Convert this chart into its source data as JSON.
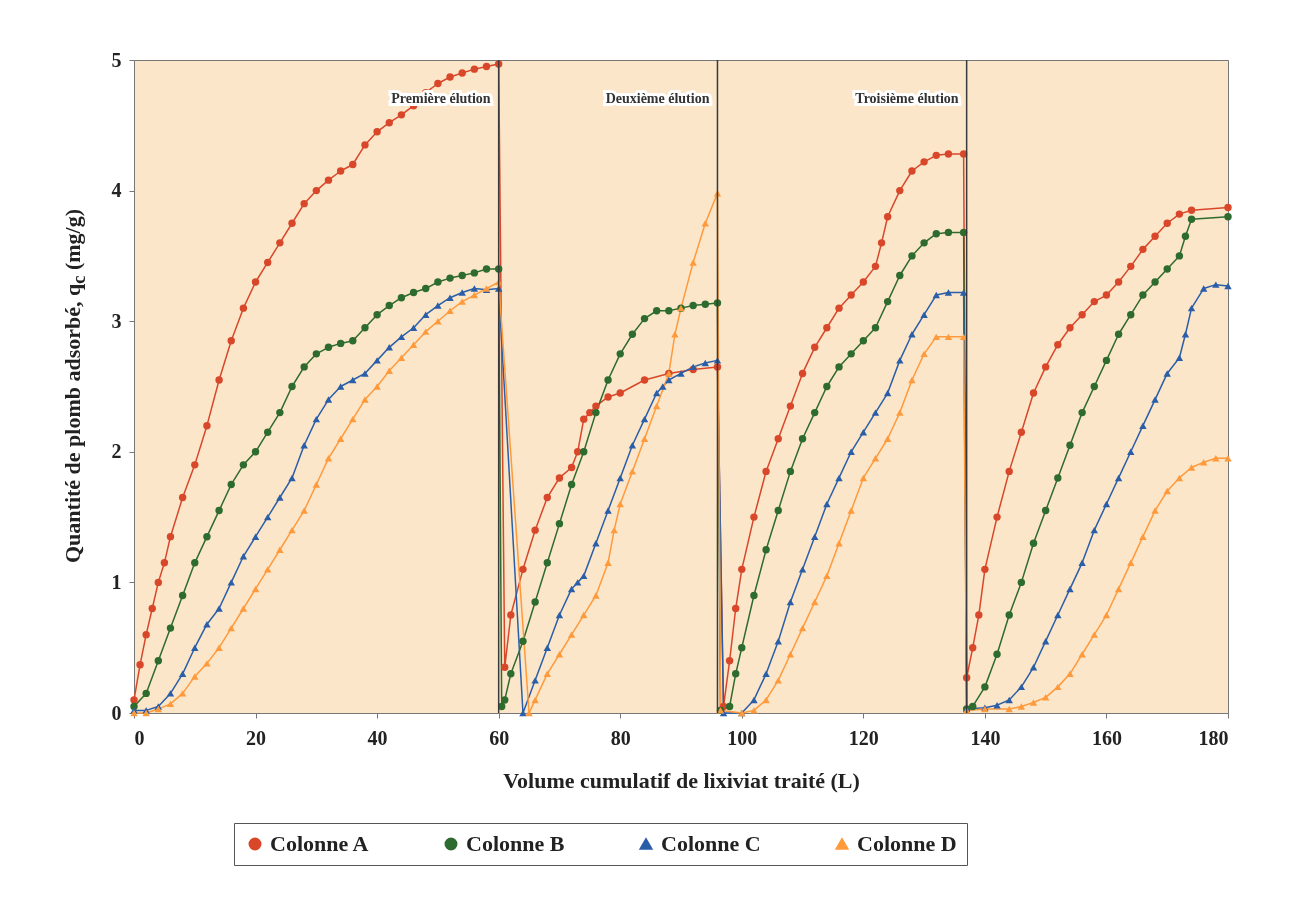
{
  "chart_data": {
    "type": "line",
    "xlabel": "Volume cumulatif de lixiviat traité (L)",
    "ylabel": "Quantité de plomb adsorbé, q$_{c}$ (mg/g)",
    "xlim": [
      0,
      180
    ],
    "xticks": [
      0,
      20,
      40,
      60,
      80,
      100,
      120,
      140,
      160,
      180
    ],
    "ylim": [
      0,
      5
    ],
    "yticks": [
      0,
      1,
      2,
      3,
      4,
      5
    ],
    "grid": false,
    "legend": "bottom",
    "line_style": "solid",
    "ref_lines": [
      {
        "axis": "x",
        "value": 60,
        "label": "Première élution",
        "color": "#3a3a3a"
      },
      {
        "axis": "x",
        "value": 96,
        "label": "Deuxième élution",
        "color": "#3a3a3a"
      },
      {
        "axis": "x",
        "value": 137,
        "label": "Troisième élution",
        "color": "#3a3a3a"
      }
    ],
    "series": [
      {
        "name": "Colonne A",
        "color": "#d9472b",
        "marker": "circle",
        "x": [
          0,
          1,
          2,
          3,
          4,
          5,
          6,
          8,
          10,
          12,
          14,
          16,
          18,
          20,
          22,
          24,
          26,
          28,
          30,
          32,
          34,
          36,
          38,
          40,
          42,
          44,
          46,
          48,
          50,
          52,
          54,
          56,
          58,
          60,
          61,
          62,
          64,
          66,
          68,
          70,
          72,
          73,
          74,
          75,
          76,
          78,
          80,
          84,
          88,
          92,
          96,
          97,
          98,
          99,
          100,
          102,
          104,
          106,
          108,
          110,
          112,
          114,
          116,
          118,
          120,
          122,
          123,
          124,
          126,
          128,
          130,
          132,
          134,
          136.5,
          137,
          138,
          139,
          140,
          142,
          144,
          146,
          148,
          150,
          152,
          154,
          156,
          158,
          160,
          162,
          164,
          166,
          168,
          170,
          172,
          174,
          180
        ],
        "values": [
          0.1,
          0.37,
          0.6,
          0.8,
          1.0,
          1.15,
          1.35,
          1.65,
          1.9,
          2.2,
          2.55,
          2.85,
          3.1,
          3.3,
          3.45,
          3.6,
          3.75,
          3.9,
          4.0,
          4.08,
          4.15,
          4.2,
          4.35,
          4.45,
          4.52,
          4.58,
          4.65,
          4.75,
          4.82,
          4.87,
          4.9,
          4.93,
          4.95,
          4.97,
          0.35,
          0.75,
          1.1,
          1.4,
          1.65,
          1.8,
          1.88,
          2.0,
          2.25,
          2.3,
          2.35,
          2.42,
          2.45,
          2.55,
          2.6,
          2.63,
          2.65,
          0.05,
          0.4,
          0.8,
          1.1,
          1.5,
          1.85,
          2.1,
          2.35,
          2.6,
          2.8,
          2.95,
          3.1,
          3.2,
          3.3,
          3.42,
          3.6,
          3.8,
          4.0,
          4.15,
          4.22,
          4.27,
          4.28,
          4.28,
          0.27,
          0.5,
          0.75,
          1.1,
          1.5,
          1.85,
          2.15,
          2.45,
          2.65,
          2.82,
          2.95,
          3.05,
          3.15,
          3.2,
          3.3,
          3.42,
          3.55,
          3.65,
          3.75,
          3.82,
          3.85,
          3.87
        ]
      },
      {
        "name": "Colonne B",
        "color": "#2e6b2e",
        "marker": "circle",
        "x": [
          0,
          2,
          4,
          6,
          8,
          10,
          12,
          14,
          16,
          18,
          20,
          22,
          24,
          26,
          28,
          30,
          32,
          34,
          36,
          38,
          40,
          42,
          44,
          46,
          48,
          50,
          52,
          54,
          56,
          58,
          60,
          60.5,
          61,
          62,
          64,
          66,
          68,
          70,
          72,
          74,
          76,
          78,
          80,
          82,
          84,
          86,
          88,
          90,
          92,
          94,
          96,
          96.5,
          98,
          99,
          100,
          102,
          104,
          106,
          108,
          110,
          112,
          114,
          116,
          118,
          120,
          122,
          124,
          126,
          128,
          130,
          132,
          134,
          136.5,
          137,
          138,
          140,
          142,
          144,
          146,
          148,
          150,
          152,
          154,
          156,
          158,
          160,
          162,
          164,
          166,
          168,
          170,
          172,
          173,
          174,
          180
        ],
        "values": [
          0.05,
          0.15,
          0.4,
          0.65,
          0.9,
          1.15,
          1.35,
          1.55,
          1.75,
          1.9,
          2.0,
          2.15,
          2.3,
          2.5,
          2.65,
          2.75,
          2.8,
          2.83,
          2.85,
          2.95,
          3.05,
          3.12,
          3.18,
          3.22,
          3.25,
          3.3,
          3.33,
          3.35,
          3.37,
          3.4,
          3.4,
          0.05,
          0.1,
          0.3,
          0.55,
          0.85,
          1.15,
          1.45,
          1.75,
          2.0,
          2.3,
          2.55,
          2.75,
          2.9,
          3.02,
          3.08,
          3.08,
          3.1,
          3.12,
          3.13,
          3.14,
          0.02,
          0.05,
          0.3,
          0.5,
          0.9,
          1.25,
          1.55,
          1.85,
          2.1,
          2.3,
          2.5,
          2.65,
          2.75,
          2.85,
          2.95,
          3.15,
          3.35,
          3.5,
          3.6,
          3.67,
          3.68,
          3.68,
          0.03,
          0.05,
          0.2,
          0.45,
          0.75,
          1.0,
          1.3,
          1.55,
          1.8,
          2.05,
          2.3,
          2.5,
          2.7,
          2.9,
          3.05,
          3.2,
          3.3,
          3.4,
          3.5,
          3.65,
          3.78,
          3.8
        ]
      },
      {
        "name": "Colonne C",
        "color": "#2a5ea8",
        "marker": "triangle",
        "x": [
          0,
          2,
          4,
          6,
          8,
          10,
          12,
          14,
          16,
          18,
          20,
          22,
          24,
          26,
          28,
          30,
          32,
          34,
          36,
          38,
          40,
          42,
          44,
          46,
          48,
          50,
          52,
          54,
          56,
          58,
          60,
          64,
          66,
          68,
          70,
          72,
          73,
          74,
          76,
          78,
          80,
          82,
          84,
          86,
          87,
          88,
          90,
          92,
          94,
          96,
          97,
          100,
          102,
          104,
          106,
          108,
          110,
          112,
          114,
          116,
          118,
          120,
          122,
          124,
          126,
          128,
          130,
          132,
          134,
          136.5,
          137,
          140,
          142,
          144,
          146,
          148,
          150,
          152,
          154,
          156,
          158,
          160,
          162,
          164,
          166,
          168,
          170,
          172,
          173,
          174,
          176,
          178,
          180
        ],
        "values": [
          0.02,
          0.02,
          0.05,
          0.15,
          0.3,
          0.5,
          0.68,
          0.8,
          1.0,
          1.2,
          1.35,
          1.5,
          1.65,
          1.8,
          2.05,
          2.25,
          2.4,
          2.5,
          2.55,
          2.6,
          2.7,
          2.8,
          2.88,
          2.95,
          3.05,
          3.12,
          3.18,
          3.22,
          3.25,
          3.24,
          3.25,
          0.0,
          0.25,
          0.5,
          0.75,
          0.95,
          1.0,
          1.05,
          1.3,
          1.55,
          1.8,
          2.05,
          2.25,
          2.45,
          2.5,
          2.55,
          2.6,
          2.65,
          2.68,
          2.7,
          0.0,
          0.0,
          0.1,
          0.3,
          0.55,
          0.85,
          1.1,
          1.35,
          1.6,
          1.8,
          2.0,
          2.15,
          2.3,
          2.45,
          2.7,
          2.9,
          3.05,
          3.2,
          3.22,
          3.22,
          0.03,
          0.04,
          0.06,
          0.1,
          0.2,
          0.35,
          0.55,
          0.75,
          0.95,
          1.15,
          1.4,
          1.6,
          1.8,
          2.0,
          2.2,
          2.4,
          2.6,
          2.72,
          2.9,
          3.1,
          3.25,
          3.28,
          3.27
        ]
      },
      {
        "name": "Colonne D",
        "color": "#ff9a3c",
        "marker": "triangle",
        "x": [
          0,
          2,
          4,
          6,
          8,
          10,
          12,
          14,
          16,
          18,
          20,
          22,
          24,
          26,
          28,
          30,
          32,
          34,
          36,
          38,
          40,
          42,
          44,
          46,
          48,
          50,
          52,
          54,
          56,
          58,
          60,
          65,
          66,
          68,
          70,
          72,
          74,
          76,
          78,
          79,
          80,
          82,
          84,
          86,
          88,
          89,
          90,
          92,
          94,
          96,
          96.5,
          100,
          102,
          104,
          106,
          108,
          110,
          112,
          114,
          116,
          118,
          120,
          122,
          124,
          126,
          128,
          130,
          132,
          134,
          136.5,
          137,
          140,
          144,
          146,
          148,
          150,
          152,
          154,
          156,
          158,
          160,
          162,
          164,
          166,
          168,
          170,
          172,
          174,
          176,
          178,
          180
        ],
        "values": [
          0.0,
          0.0,
          0.03,
          0.07,
          0.15,
          0.28,
          0.38,
          0.5,
          0.65,
          0.8,
          0.95,
          1.1,
          1.25,
          1.4,
          1.55,
          1.75,
          1.95,
          2.1,
          2.25,
          2.4,
          2.5,
          2.62,
          2.72,
          2.82,
          2.92,
          3.0,
          3.08,
          3.15,
          3.2,
          3.25,
          3.3,
          0.0,
          0.1,
          0.3,
          0.45,
          0.6,
          0.75,
          0.9,
          1.15,
          1.4,
          1.6,
          1.85,
          2.1,
          2.35,
          2.6,
          2.9,
          3.1,
          3.45,
          3.75,
          3.98,
          0.02,
          0.0,
          0.02,
          0.1,
          0.25,
          0.45,
          0.65,
          0.85,
          1.05,
          1.3,
          1.55,
          1.8,
          1.95,
          2.1,
          2.3,
          2.55,
          2.75,
          2.88,
          2.88,
          2.88,
          0.02,
          0.03,
          0.03,
          0.05,
          0.08,
          0.12,
          0.2,
          0.3,
          0.45,
          0.6,
          0.75,
          0.95,
          1.15,
          1.35,
          1.55,
          1.7,
          1.8,
          1.88,
          1.92,
          1.95,
          1.95
        ]
      }
    ]
  }
}
